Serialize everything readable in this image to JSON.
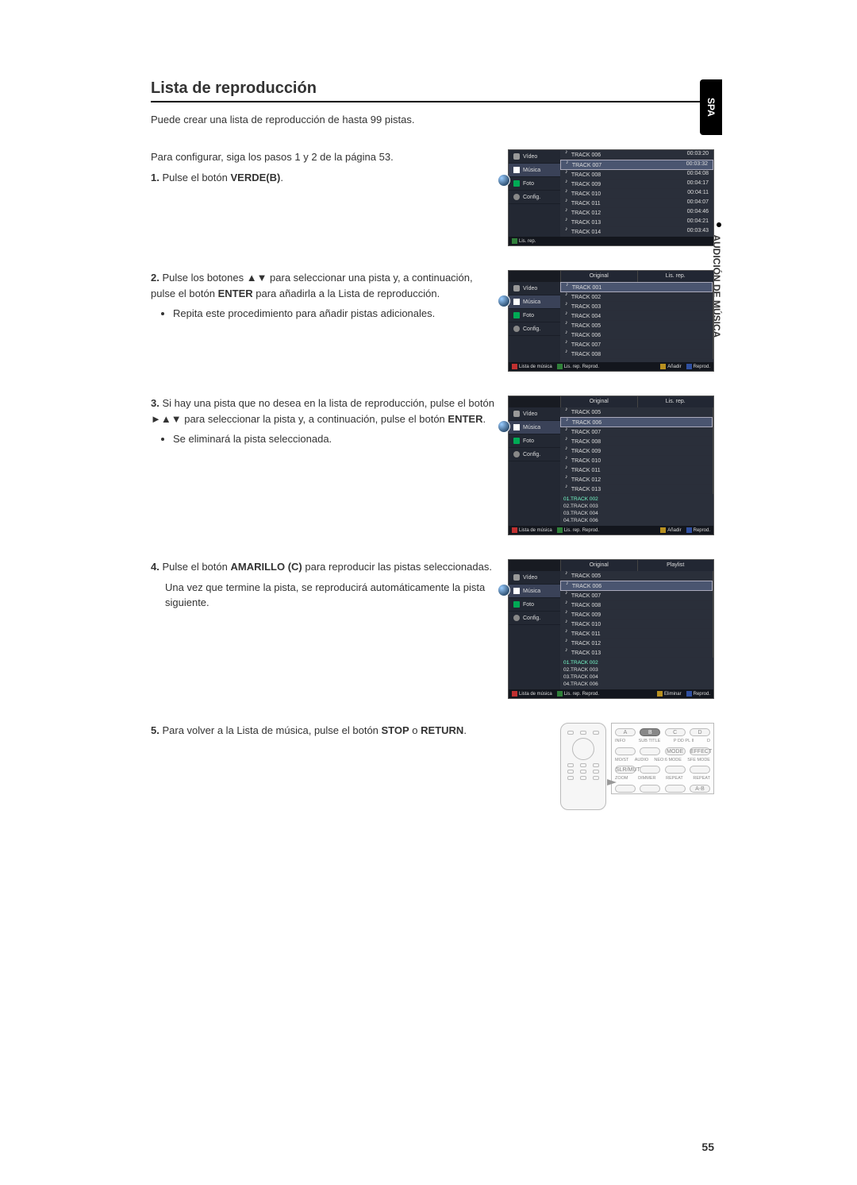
{
  "colors": {
    "page_bg": "#ffffff",
    "text": "#333333",
    "rule": "#000000",
    "screen_bg": "#2a2f3a",
    "screen_dark": "#181b22",
    "screen_sidebar": "#232833",
    "screen_sel": "#4a5570",
    "badge_a": "#c03030",
    "badge_b": "#30803a",
    "badge_c": "#b89020",
    "badge_d": "#3050a0"
  },
  "side": {
    "lang": "SPA",
    "section": "AUDICIÓN DE MÚSICA"
  },
  "title": "Lista de reproducción",
  "intro": "Puede crear una lista de reproducción de hasta 99 pistas.",
  "intro2": "Para configurar, siga los pasos 1 y 2 de la página 53.",
  "steps": {
    "s1": {
      "num": "1.",
      "text_a": "Pulse el botón ",
      "bold": "VERDE(B)",
      "text_b": "."
    },
    "s2": {
      "num": "2.",
      "text_a": "Pulse los botones ▲▼ para seleccionar una pista y, a continuación, pulse el botón ",
      "bold": "ENTER",
      "text_b": " para añadirla a la Lista de reproducción.",
      "bullet": "Repita este procedimiento para añadir pistas adicionales."
    },
    "s3": {
      "num": "3.",
      "text_a": "Si hay una pista que no desea en la lista de reproducción, pulse el botón ►▲▼ para seleccionar la pista y, a continuación, pulse el botón ",
      "bold": "ENTER",
      "text_b": ".",
      "bullet": "Se eliminará la pista seleccionada."
    },
    "s4": {
      "num": "4.",
      "text_a": "Pulse el botón ",
      "bold": "AMARILLO (C)",
      "text_b": " para reproducir las pistas seleccionadas.",
      "line2": "Una vez que termine la pista, se reproducirá automáticamente la pista siguiente."
    },
    "s5": {
      "num": "5.",
      "text_a": "Para volver a la Lista de música, pulse el botón ",
      "bold1": "STOP",
      "mid": " o ",
      "bold2": "RETURN",
      "text_b": "."
    }
  },
  "ui": {
    "sidebar": {
      "video": "Vídeo",
      "musica": "Música",
      "foto": "Foto",
      "config": "Config."
    },
    "tabs": {
      "original": "Original",
      "lisrep": "Lis. rep.",
      "playlist": "Playlist"
    },
    "footer": {
      "b_lisrep": "Lis. rep.",
      "a_lista": "Lista de música",
      "b_lisrep_rep": "Lis. rep. Reprod.",
      "c_anadir": "Añadir",
      "c_eliminar": "Eliminar",
      "d_reprod": "Reprod."
    },
    "fig1": {
      "tracks": [
        {
          "n": "TRACK 006",
          "t": "00:03:20"
        },
        {
          "n": "TRACK 007",
          "t": "00:03:32"
        },
        {
          "n": "TRACK 008",
          "t": "00:04:08"
        },
        {
          "n": "TRACK 009",
          "t": "00:04:17"
        },
        {
          "n": "TRACK 010",
          "t": "00:04:11"
        },
        {
          "n": "TRACK 011",
          "t": "00:04:07"
        },
        {
          "n": "TRACK 012",
          "t": "00:04:46"
        },
        {
          "n": "TRACK 013",
          "t": "00:04:21"
        },
        {
          "n": "TRACK 014",
          "t": "00:03:43"
        }
      ],
      "selected_index": 1
    },
    "fig2": {
      "tracks": [
        "TRACK 001",
        "TRACK 002",
        "TRACK 003",
        "TRACK 004",
        "TRACK 005",
        "TRACK 006",
        "TRACK 007",
        "TRACK 008"
      ],
      "selected_index": 0,
      "playlist": []
    },
    "fig3": {
      "tracks": [
        "TRACK 005",
        "TRACK 006",
        "TRACK 007",
        "TRACK 008",
        "TRACK 009",
        "TRACK 010",
        "TRACK 011",
        "TRACK 012",
        "TRACK 013"
      ],
      "selected_index": 1,
      "playlist": [
        "01.TRACK 002",
        "02.TRACK 003",
        "03.TRACK 004",
        "04.TRACK 006"
      ],
      "pl_sel": 0
    },
    "fig4": {
      "tracks": [
        "TRACK 005",
        "TRACK 006",
        "TRACK 007",
        "TRACK 008",
        "TRACK 009",
        "TRACK 010",
        "TRACK 011",
        "TRACK 012",
        "TRACK 013"
      ],
      "selected_index": 1,
      "playlist": [
        "01.TRACK 002",
        "02.TRACK 003",
        "03.TRACK 004",
        "04.TRACK 006"
      ],
      "pl_sel": 0
    },
    "remote": {
      "row1": [
        "A",
        "B",
        "C",
        "D"
      ],
      "row2_lbl": [
        "INFO",
        "SUB TITLE",
        "P DD PL II ",
        "D"
      ],
      "row3_lbl": [
        "",
        "",
        "MODE",
        "EFFECT"
      ],
      "row4_lbl": [
        "MO/ST",
        "AUDIO",
        "NEO:6 MODE",
        "SFE MODE"
      ],
      "row5_lbl": [
        "SLR/MUTE",
        "",
        "",
        ""
      ],
      "row6_lbl": [
        "ZOOM",
        "DIMMER",
        "REPEAT",
        "REPEAT"
      ],
      "row7_lbl": [
        "",
        "",
        "",
        "A-B"
      ]
    }
  },
  "page_number": "55"
}
